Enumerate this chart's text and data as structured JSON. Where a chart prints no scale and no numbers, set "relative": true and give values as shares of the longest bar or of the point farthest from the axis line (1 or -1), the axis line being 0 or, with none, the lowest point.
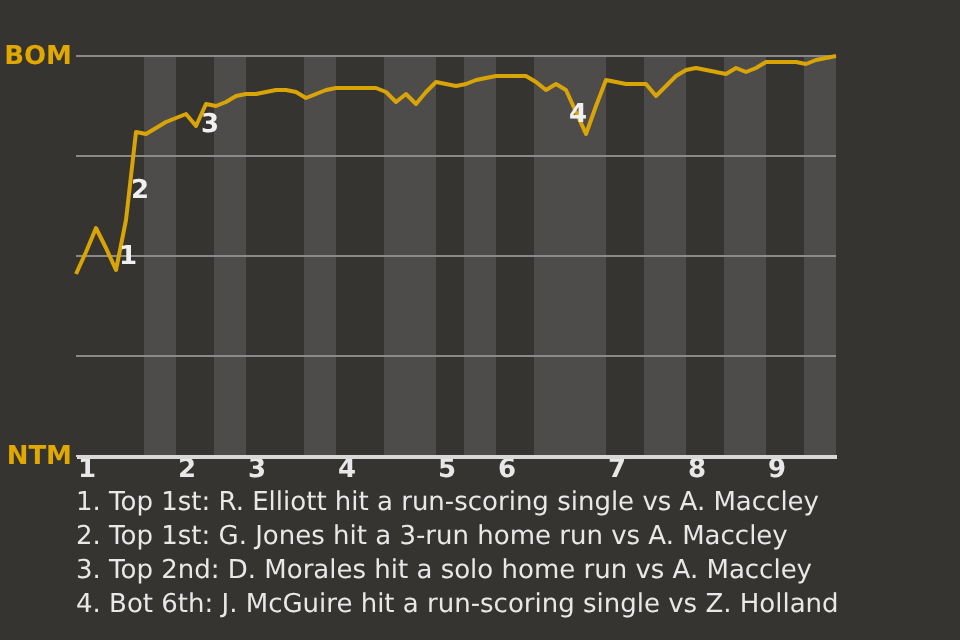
{
  "chart_data": {
    "type": "line",
    "relative": true,
    "categories": [
      null,
      "1",
      null,
      null,
      null,
      null,
      null,
      null,
      null,
      null,
      null,
      "2",
      null,
      null,
      null,
      null,
      null,
      null,
      "3",
      null,
      null,
      null,
      null,
      null,
      null,
      null,
      null,
      "4",
      null,
      null,
      null,
      null,
      null,
      null,
      null,
      null,
      null,
      "5",
      null,
      null,
      null,
      null,
      null,
      "6",
      null,
      null,
      null,
      null,
      null,
      null,
      null,
      null,
      null,
      null,
      "7",
      null,
      null,
      null,
      null,
      null,
      null,
      null,
      "8",
      null,
      null,
      null,
      null,
      null,
      null,
      null,
      "9",
      null,
      null,
      null,
      null,
      null,
      null
    ],
    "series": [
      {
        "color": "#d9a406",
        "values": [
          0.455,
          0.51,
          0.57,
          0.52,
          0.465,
          0.59,
          0.81,
          0.805,
          0.82,
          0.835,
          0.845,
          0.855,
          0.825,
          0.88,
          0.875,
          0.885,
          0.9,
          0.905,
          0.905,
          0.91,
          0.915,
          0.915,
          0.91,
          0.895,
          0.905,
          0.915,
          0.92,
          0.92,
          0.92,
          0.92,
          0.92,
          0.91,
          0.885,
          0.905,
          0.88,
          0.91,
          0.935,
          0.93,
          0.925,
          0.93,
          0.94,
          0.945,
          0.95,
          0.95,
          0.95,
          0.95,
          0.935,
          0.915,
          0.93,
          0.915,
          0.86,
          0.805,
          0.875,
          0.94,
          0.935,
          0.93,
          0.93,
          0.93,
          0.9,
          0.925,
          0.95,
          0.965,
          0.97,
          0.965,
          0.96,
          0.955,
          0.97,
          0.96,
          0.97,
          0.985,
          0.985,
          0.985,
          0.985,
          0.98,
          0.99,
          0.995,
          1
        ]
      }
    ],
    "marker": "none",
    "line_style": "solid",
    "ref_lines": [
      {
        "axis": "y",
        "value": 1,
        "label": "BOM",
        "color": "#8a8a8a"
      },
      {
        "axis": "y",
        "value": 0.75,
        "color": "#8a8a8a"
      },
      {
        "axis": "y",
        "value": 0.5,
        "color": "#8a8a8a"
      },
      {
        "axis": "y",
        "value": 0.25,
        "color": "#8a8a8a"
      },
      {
        "axis": "y",
        "value": 0,
        "label": "NTM",
        "color": "#d8d8d8"
      }
    ],
    "annotations": [
      {
        "text": "1",
        "y": 0.5
      },
      {
        "text": "2",
        "y": 0.665
      },
      {
        "text": "3",
        "y": 0.83
      },
      {
        "text": "4",
        "y": 0.855
      },
      "1. Top 1st: R. Elliott hit a run-scoring single vs A. Maccley",
      "2. Top 1st: G. Jones hit a 3-run home run vs A. Maccley",
      "3. Top 2nd: D. Morales hit a solo home run vs A. Maccley",
      "4. Bot 6th: J. McGuire hit a run-scoring single vs Z. Holland"
    ]
  }
}
